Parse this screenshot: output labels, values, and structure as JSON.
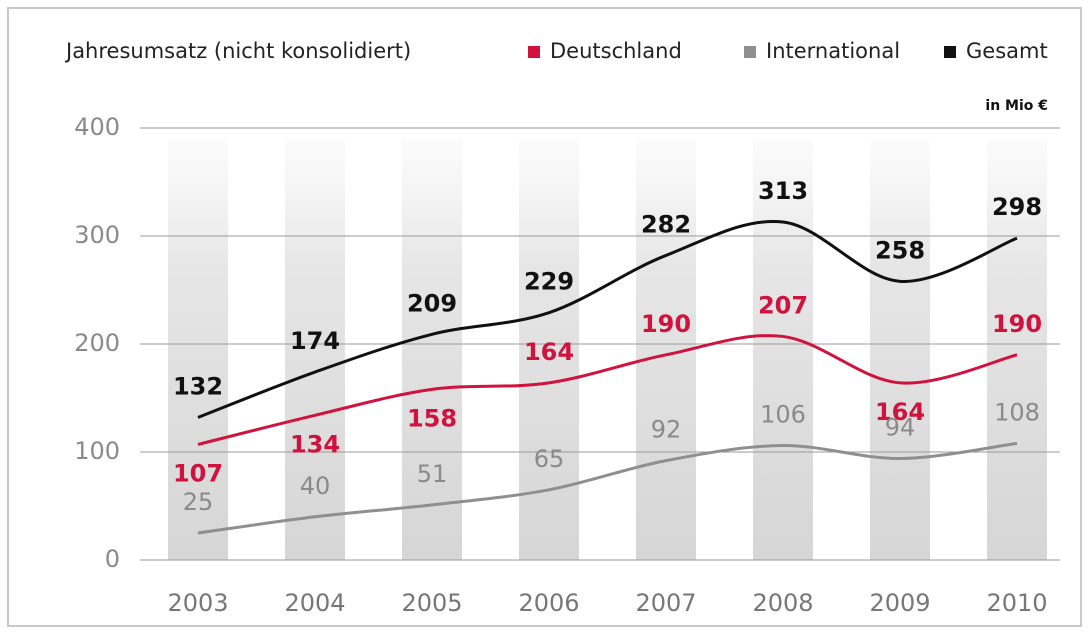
{
  "chart_data": {
    "type": "line",
    "title": "Jahresumsatz (nicht konsolidiert)",
    "unit_label": "in Mio €",
    "categories": [
      "2003",
      "2004",
      "2005",
      "2006",
      "2007",
      "2008",
      "2009",
      "2010"
    ],
    "series": [
      {
        "name": "Deutschland",
        "color": "#d2123e",
        "values": [
          107,
          134,
          158,
          164,
          190,
          207,
          164,
          190
        ]
      },
      {
        "name": "International",
        "color": "#8f8f8f",
        "values": [
          25,
          40,
          51,
          65,
          92,
          106,
          94,
          108
        ]
      },
      {
        "name": "Gesamt",
        "color": "#111111",
        "values": [
          132,
          174,
          209,
          229,
          282,
          313,
          258,
          298
        ]
      }
    ],
    "ylim": [
      0,
      400
    ],
    "yticks": [
      0,
      100,
      200,
      300,
      400
    ],
    "grid": true,
    "legend": "top-right"
  }
}
